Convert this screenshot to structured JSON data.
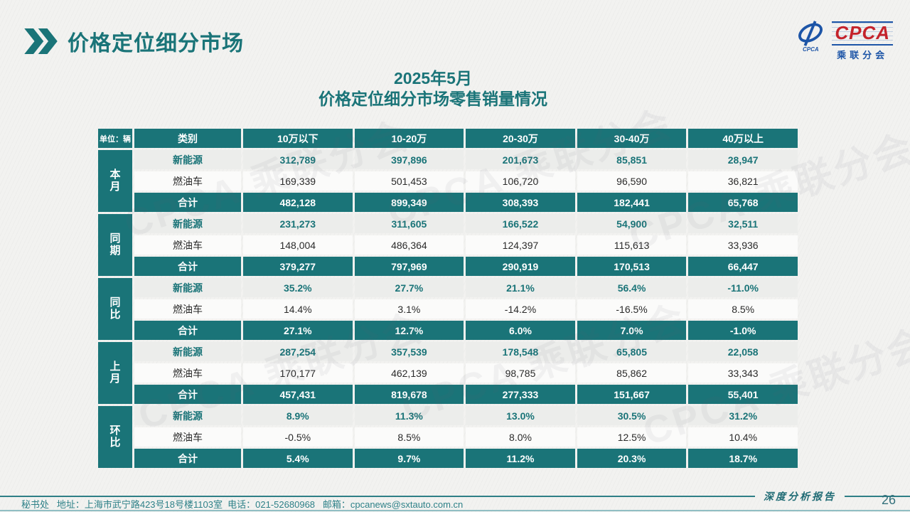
{
  "header": {
    "title": "价格定位细分市场"
  },
  "logo": {
    "wordmark": "CPCA",
    "subtext": "乘联分会",
    "icon_caption": "CPCA"
  },
  "subtitle": {
    "line1": "2025年5月",
    "line2": "价格定位细分市场零售销量情况"
  },
  "table": {
    "unit_label": "单位：辆",
    "columns": [
      "类别",
      "10万以下",
      "10-20万",
      "20-30万",
      "30-40万",
      "40万以上"
    ],
    "groups": [
      {
        "label": "本月",
        "rows": [
          {
            "label": "新能源",
            "type": "nev",
            "values": [
              "312,789",
              "397,896",
              "201,673",
              "85,851",
              "28,947"
            ]
          },
          {
            "label": "燃油车",
            "type": "fuel",
            "values": [
              "169,339",
              "501,453",
              "106,720",
              "96,590",
              "36,821"
            ]
          },
          {
            "label": "合计",
            "type": "total",
            "values": [
              "482,128",
              "899,349",
              "308,393",
              "182,441",
              "65,768"
            ]
          }
        ]
      },
      {
        "label": "同期",
        "rows": [
          {
            "label": "新能源",
            "type": "nev",
            "values": [
              "231,273",
              "311,605",
              "166,522",
              "54,900",
              "32,511"
            ]
          },
          {
            "label": "燃油车",
            "type": "fuel",
            "values": [
              "148,004",
              "486,364",
              "124,397",
              "115,613",
              "33,936"
            ]
          },
          {
            "label": "合计",
            "type": "total",
            "values": [
              "379,277",
              "797,969",
              "290,919",
              "170,513",
              "66,447"
            ]
          }
        ]
      },
      {
        "label": "同比",
        "rows": [
          {
            "label": "新能源",
            "type": "nev",
            "values": [
              "35.2%",
              "27.7%",
              "21.1%",
              "56.4%",
              "-11.0%"
            ]
          },
          {
            "label": "燃油车",
            "type": "fuel",
            "values": [
              "14.4%",
              "3.1%",
              "-14.2%",
              "-16.5%",
              "8.5%"
            ]
          },
          {
            "label": "合计",
            "type": "total",
            "values": [
              "27.1%",
              "12.7%",
              "6.0%",
              "7.0%",
              "-1.0%"
            ]
          }
        ]
      },
      {
        "label": "上月",
        "rows": [
          {
            "label": "新能源",
            "type": "nev",
            "values": [
              "287,254",
              "357,539",
              "178,548",
              "65,805",
              "22,058"
            ]
          },
          {
            "label": "燃油车",
            "type": "fuel",
            "values": [
              "170,177",
              "462,139",
              "98,785",
              "85,862",
              "33,343"
            ]
          },
          {
            "label": "合计",
            "type": "total",
            "values": [
              "457,431",
              "819,678",
              "277,333",
              "151,667",
              "55,401"
            ]
          }
        ]
      },
      {
        "label": "环比",
        "rows": [
          {
            "label": "新能源",
            "type": "nev",
            "values": [
              "8.9%",
              "11.3%",
              "13.0%",
              "30.5%",
              "31.2%"
            ]
          },
          {
            "label": "燃油车",
            "type": "fuel",
            "values": [
              "-0.5%",
              "8.5%",
              "8.0%",
              "12.5%",
              "10.4%"
            ]
          },
          {
            "label": "合计",
            "type": "total",
            "values": [
              "5.4%",
              "9.7%",
              "11.2%",
              "20.3%",
              "18.7%"
            ]
          }
        ]
      }
    ]
  },
  "footer": {
    "info": "秘书处   地址：上海市武宁路423号18号楼1103室  电话：021-52680968   邮箱：cpcanews@sxtauto.com.cn",
    "report_label": "深度分析报告",
    "page_number": "26"
  },
  "page": {
    "watermark": "CPCA 乘联分会"
  },
  "colors": {
    "teal": "#1a7478",
    "logo_red": "#c4232b",
    "logo_blue": "#1d55a7",
    "nev_row_bg": "#ecedeb",
    "fuel_row_bg": "#fbfbfa",
    "page_bg": "#f2f2f0"
  }
}
